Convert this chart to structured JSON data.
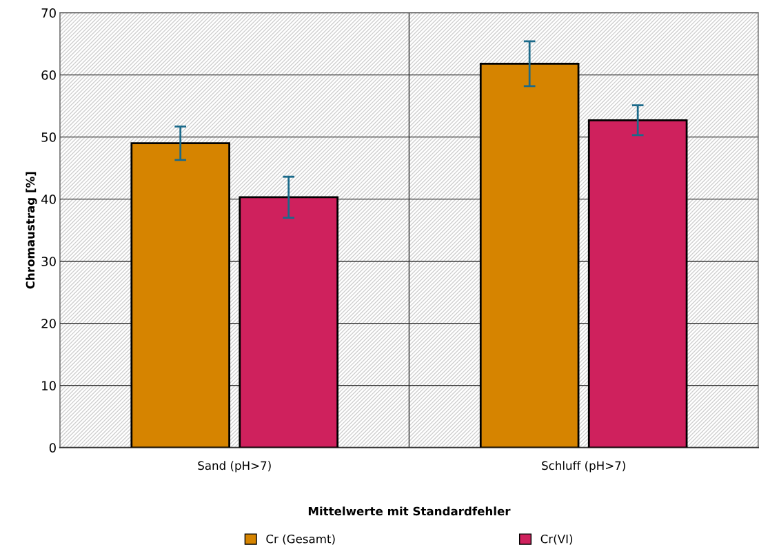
{
  "chart_data": {
    "type": "bar",
    "categories": [
      "Sand (pH>7)",
      "Schluff (pH>7)"
    ],
    "series": [
      {
        "name": "Cr (Gesamt)",
        "color": "#d68400",
        "values": [
          49.0,
          61.8
        ],
        "errors": [
          2.7,
          3.6
        ]
      },
      {
        "name": "Cr(VI)",
        "color": "#cf215d",
        "values": [
          40.3,
          52.7
        ],
        "errors": [
          3.3,
          2.4
        ]
      }
    ],
    "xlabel": "Mittelwerte mit Standardfehler",
    "ylabel": "Chromaustrag [%]",
    "ylim": [
      0,
      70
    ],
    "yticks": [
      0,
      10,
      20,
      30,
      40,
      50,
      60,
      70
    ],
    "grid": true,
    "legend": "bottom"
  }
}
